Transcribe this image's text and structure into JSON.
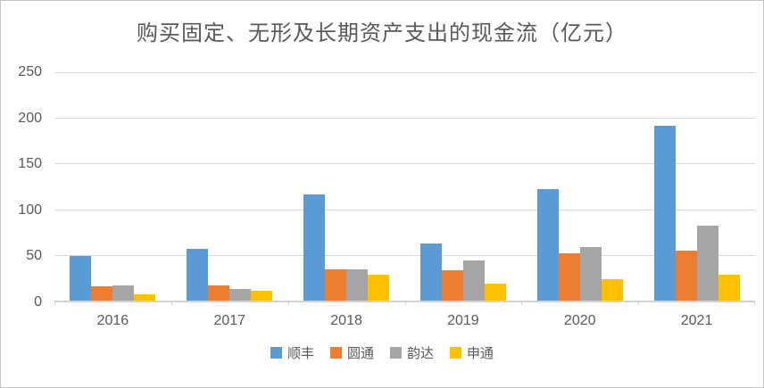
{
  "chart_data": {
    "type": "bar",
    "title": "购买固定、无形及长期资产支出的现金流（亿元）",
    "categories": [
      "2016",
      "2017",
      "2018",
      "2019",
      "2020",
      "2021"
    ],
    "series": [
      {
        "name": "顺丰",
        "color": "#5B9BD5",
        "values": [
          49,
          57,
          116,
          63,
          122,
          191
        ]
      },
      {
        "name": "圆通",
        "color": "#ED7D31",
        "values": [
          16,
          17,
          34,
          33,
          52,
          55
        ]
      },
      {
        "name": "韵达",
        "color": "#A5A5A5",
        "values": [
          17,
          13,
          34,
          44,
          59,
          82
        ]
      },
      {
        "name": "申通",
        "color": "#FFC000",
        "values": [
          7,
          11,
          28,
          19,
          23,
          28
        ]
      }
    ],
    "xlabel": "",
    "ylabel": "",
    "ylim": [
      0,
      250
    ],
    "yticks": [
      0,
      50,
      100,
      150,
      200,
      250
    ],
    "grid": true,
    "legend_position": "bottom",
    "text_color": "#595959",
    "gridline_color": "#D9D9D9",
    "axis_line_color": "#D2D2D2",
    "background_color": "#FFFFFF"
  }
}
